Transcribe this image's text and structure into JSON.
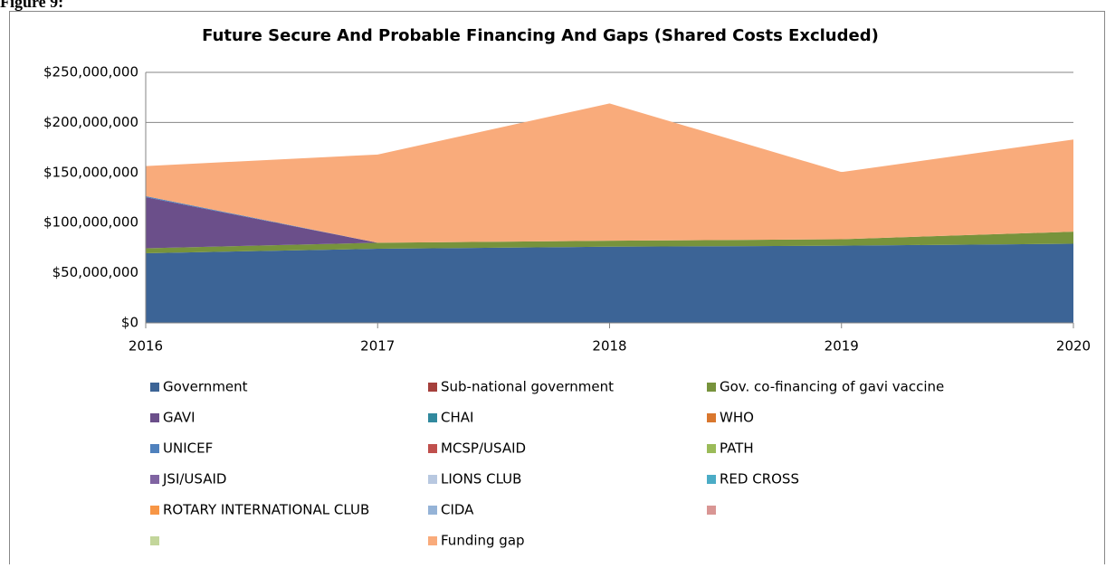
{
  "figure_label": "Figure 9:",
  "chart_data": {
    "type": "area",
    "stacked": true,
    "title": "Future Secure And Probable Financing And Gaps (Shared Costs Excluded)",
    "x": [
      2016,
      2017,
      2018,
      2019,
      2020
    ],
    "xlim": [
      2016,
      2020
    ],
    "xticks": [
      2016,
      2017,
      2018,
      2019,
      2020
    ],
    "ylim": [
      0,
      250000000
    ],
    "yticks": [
      {
        "value": 0,
        "label": "$0"
      },
      {
        "value": 50000000,
        "label": "$50,000,000"
      },
      {
        "value": 100000000,
        "label": "$100,000,000"
      },
      {
        "value": 150000000,
        "label": "$150,000,000"
      },
      {
        "value": 200000000,
        "label": "$200,000,000"
      },
      {
        "value": 250000000,
        "label": "$250,000,000"
      }
    ],
    "grid": true,
    "legend": "bottom",
    "series": [
      {
        "name": "Government",
        "color": "#3c6496",
        "values": [
          69500000,
          74000000,
          76000000,
          77000000,
          79000000
        ]
      },
      {
        "name": "Sub-national government",
        "color": "#a5403c",
        "values": [
          0,
          0,
          0,
          0,
          0
        ]
      },
      {
        "name": "Gov. co-financing of gavi vaccine",
        "color": "#77933c",
        "values": [
          5000000,
          6000000,
          6000000,
          6500000,
          12000000
        ]
      },
      {
        "name": "GAVI",
        "color": "#6b4f8a",
        "values": [
          51000000,
          0,
          0,
          0,
          0
        ]
      },
      {
        "name": "CHAI",
        "color": "#31899e",
        "values": [
          0,
          0,
          0,
          0,
          0
        ]
      },
      {
        "name": "WHO",
        "color": "#d9772e",
        "values": [
          0,
          0,
          0,
          0,
          0
        ]
      },
      {
        "name": "UNICEF",
        "color": "#4f81bd",
        "values": [
          1000000,
          0,
          0,
          0,
          0
        ]
      },
      {
        "name": "MCSP/USAID",
        "color": "#c0504d",
        "values": [
          0,
          0,
          0,
          0,
          0
        ]
      },
      {
        "name": "PATH",
        "color": "#9bbb59",
        "values": [
          0,
          0,
          0,
          0,
          0
        ]
      },
      {
        "name": "JSI/USAID",
        "color": "#8064a2",
        "values": [
          0,
          0,
          0,
          0,
          0
        ]
      },
      {
        "name": "LIONS CLUB",
        "color": "#b8c8e0",
        "values": [
          0,
          0,
          0,
          0,
          0
        ]
      },
      {
        "name": "RED CROSS",
        "color": "#4bacc6",
        "values": [
          0,
          0,
          0,
          0,
          0
        ]
      },
      {
        "name": "ROTARY INTERNATIONAL CLUB",
        "color": "#f79646",
        "values": [
          0,
          0,
          0,
          0,
          0
        ]
      },
      {
        "name": "CIDA",
        "color": "#95b3d7",
        "values": [
          0,
          0,
          0,
          0,
          0
        ]
      },
      {
        "name": null,
        "color": "#d99694",
        "values": [
          0,
          0,
          0,
          0,
          0
        ]
      },
      {
        "name": null,
        "color": "#c3d69b",
        "values": [
          0,
          0,
          0,
          0,
          0
        ]
      },
      {
        "name": "Funding gap",
        "color": "#f9ab7b",
        "values": [
          30000000,
          88000000,
          137000000,
          67000000,
          92000000
        ]
      }
    ]
  }
}
